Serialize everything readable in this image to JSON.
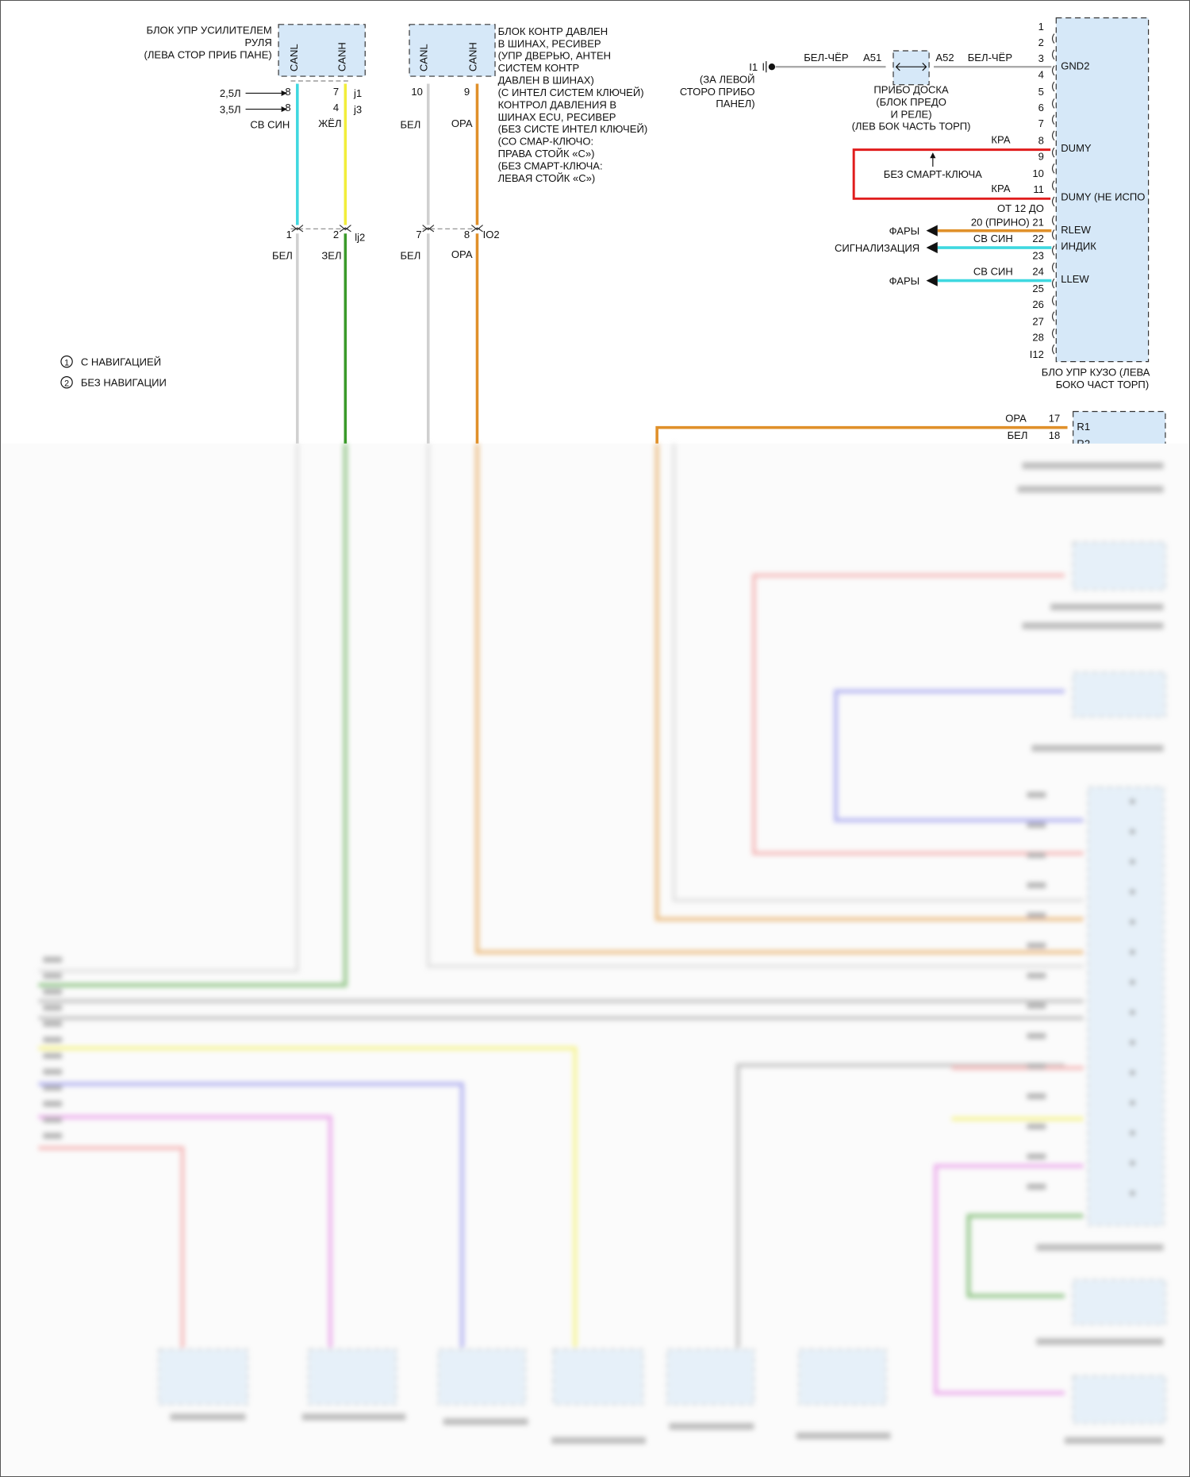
{
  "colors": {
    "cyan": "#3fd8e0",
    "yellow": "#f2ee3a",
    "green": "#3a9a2a",
    "orange": "#e0902a",
    "white_wire": "#d0d0d0",
    "red": "#e01c1c",
    "box_fill": "#d6e8f8",
    "blue": "#7a7ae8",
    "magenta": "#e070e0",
    "pink": "#f08888"
  },
  "steering": {
    "label": [
      "БЛОК УПР УСИЛИТЕЛЕМ",
      "РУЛЯ",
      "(ЛЕВА СТОР ПРИБ ПАНЕ)"
    ],
    "pin_canl": "CANL",
    "pin_canh": "CANH",
    "engine_25": "2,5Л",
    "engine_35": "3,5Л",
    "pin_l_25": "8",
    "pin_l_35": "8",
    "pin_h_25": "7",
    "pin_h_35": "4",
    "conn_25": "j1",
    "conn_35": "j3",
    "wire_l": "СВ СИН",
    "wire_h": "ЖЁЛ",
    "junction_pin_l": "1",
    "junction_pin_h": "2",
    "junction": "lj2",
    "wire_l2": "БЕЛ",
    "wire_h2": "ЗЕЛ"
  },
  "tpms": {
    "label": [
      "БЛОК КОНТР ДАВЛЕН",
      "В ШИНАХ, РЕСИВЕР",
      "(УПР ДВЕРЬЮ, АНТЕН",
      "СИСТЕМ КОНТР",
      "ДАВЛЕН В ШИНАХ)",
      "(С ИНТЕЛ СИСТЕМ КЛЮЧЕЙ)",
      "КОНТРОЛ ДАВЛЕНИЯ В",
      "ШИНАХ ECU, РЕСИВЕР",
      "(БЕЗ СИСТЕ ИНТЕЛ КЛЮЧЕЙ)",
      "(СО СМАР-КЛЮЧО:",
      "ПРАВА СТОЙК «С»)",
      "(БЕЗ СМАРТ-КЛЮЧА:",
      "ЛЕВАЯ СТОЙК «С»)"
    ],
    "pin_canl": "CANL",
    "pin_canh": "CANH",
    "pin_l": "10",
    "pin_h": "9",
    "wire_l": "БЕЛ",
    "wire_h": "ОРА",
    "junction_pin_l": "7",
    "junction_pin_h": "8",
    "junction": "IO2",
    "wire_l2": "БЕЛ",
    "wire_h2": "ОРА"
  },
  "legend": [
    {
      "mark": "1",
      "text": "С НАВИГАЦИЕЙ"
    },
    {
      "mark": "2",
      "text": "БЕЗ НАВИГАЦИИ"
    }
  ],
  "ground": {
    "id": "I1",
    "location": [
      "(ЗА ЛЕВОЙ",
      "СТОРО ПРИБО",
      "ПАНЕЛ)"
    ],
    "wire_1": "БЕЛ-ЧЁР",
    "wire_2": "БЕЛ-ЧЁР",
    "pin_a": "A51",
    "pin_b": "A52",
    "junction_label": [
      "ПРИБО ДОСКА",
      "(БЛОК ПРЕДО",
      "И РЕЛЕ)",
      "(ЛЕВ БОК ЧАСТЬ ТОРП)"
    ]
  },
  "body_ecu": {
    "pins": [
      "1",
      "2",
      "3",
      "4",
      "5",
      "6",
      "7",
      "8",
      "9",
      "10",
      "11",
      "ОТ 12 ДО",
      "20 (ПРИНО) 21",
      "22",
      "23",
      "24",
      "25",
      "26",
      "27",
      "28",
      "I12"
    ],
    "signals": {
      "gnd2": "GND2",
      "dumy": "DUMY",
      "dumy_unused": "DUMY (НЕ ИСПО",
      "rlew": "RLEW",
      "indik": "ИНДИК",
      "llew": "LLEW"
    },
    "label": [
      "БЛО УПР КУЗО (ЛЕВА",
      "БОКО ЧАСТ ТОРП)"
    ],
    "wire_kra_1": "КРА",
    "wire_kra_2": "КРА",
    "no_smart_key": "БЕЗ СМАРТ-КЛЮЧА",
    "out_fary_1": "ФАРЫ",
    "out_signal": "СИГНАЛИЗАЦИЯ",
    "out_fary_2": "ФАРЫ",
    "wire_22": "СВ СИН",
    "wire_24": "СВ СИН"
  },
  "r_block": {
    "wire_1": "ОРА",
    "pin_1": "17",
    "sig_1": "R1",
    "wire_2": "БЕЛ",
    "pin_2": "18",
    "sig_2": "R2"
  }
}
